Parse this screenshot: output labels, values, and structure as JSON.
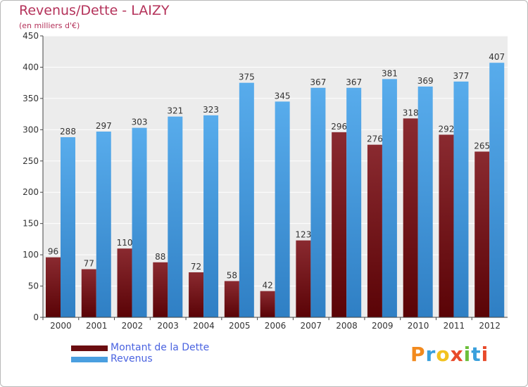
{
  "chart_data": {
    "type": "bar",
    "title": "Revenus/Dette - LAIZY",
    "subtitle": "(en milliers d'€)",
    "categories": [
      "2000",
      "2001",
      "2002",
      "2003",
      "2004",
      "2005",
      "2006",
      "2007",
      "2008",
      "2009",
      "2010",
      "2011",
      "2012"
    ],
    "series": [
      {
        "name": "Montant de la Dette",
        "color": "#6b0d10",
        "values": [
          96,
          77,
          110,
          88,
          72,
          58,
          42,
          123,
          296,
          276,
          318,
          292,
          265
        ]
      },
      {
        "name": "Revenus",
        "color": "#4a9fe0",
        "values": [
          288,
          297,
          303,
          321,
          323,
          375,
          345,
          367,
          367,
          381,
          369,
          377,
          407
        ]
      }
    ],
    "ylim": [
      0,
      450
    ],
    "yticks": [
      0,
      50,
      100,
      150,
      200,
      250,
      300,
      350,
      400,
      450
    ],
    "grid": true,
    "legend_position": "bottom-left"
  },
  "brand": {
    "letters": [
      "P",
      "r",
      "o",
      "x",
      "i",
      "t",
      "i"
    ],
    "colors": [
      "#f28a1e",
      "#3aa0dc",
      "#f2c21e",
      "#e84a2a",
      "#6cbf3a",
      "#3aa0dc",
      "#e84a2a"
    ]
  }
}
